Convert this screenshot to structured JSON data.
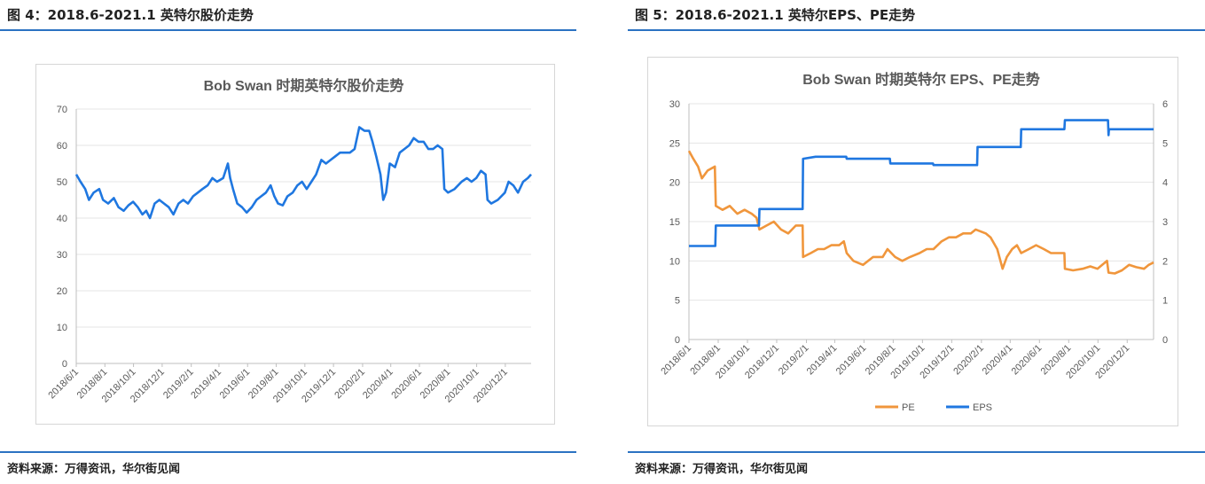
{
  "left_panel": {
    "figure_title": "图 4：2018.6-2021.1 英特尔股价走势",
    "source": "资料来源：万得资讯，华尔街见闻"
  },
  "right_panel": {
    "figure_title": "图 5：2018.6-2021.1 英特尔EPS、PE走势",
    "source": "资料来源：万得资讯，华尔街见闻"
  },
  "colors": {
    "rule": "#2b72c2",
    "price_line": "#1f77e0",
    "pe_line": "#f0963c",
    "eps_line": "#1f77e0",
    "grid": "#e4e4e4"
  },
  "chart_data": [
    {
      "type": "line",
      "title": "Bob Swan 时期英特尔股价走势",
      "xlabel": "",
      "ylabel": "",
      "ylim": [
        0,
        70
      ],
      "yticks": [
        0,
        10,
        20,
        30,
        40,
        50,
        60,
        70
      ],
      "x_range": [
        "2018-06-01",
        "2021-01-25"
      ],
      "x_ticks": [
        "2018/6/1",
        "2018/8/1",
        "2018/10/1",
        "2018/12/1",
        "2019/2/1",
        "2019/4/1",
        "2019/6/1",
        "2019/8/1",
        "2019/10/1",
        "2019/12/1",
        "2020/2/1",
        "2020/4/1",
        "2020/6/1",
        "2020/8/1",
        "2020/10/1",
        "2020/12/1"
      ],
      "grid": true,
      "legend": "none",
      "series": [
        {
          "points": [
            [
              "2018-06-01",
              52
            ],
            [
              "2018-06-10",
              50
            ],
            [
              "2018-06-20",
              48
            ],
            [
              "2018-06-28",
              45
            ],
            [
              "2018-07-08",
              47
            ],
            [
              "2018-07-20",
              48
            ],
            [
              "2018-07-28",
              45
            ],
            [
              "2018-08-08",
              44
            ],
            [
              "2018-08-20",
              45.5
            ],
            [
              "2018-08-30",
              43
            ],
            [
              "2018-09-10",
              42
            ],
            [
              "2018-09-20",
              43.5
            ],
            [
              "2018-09-30",
              44.5
            ],
            [
              "2018-10-10",
              43
            ],
            [
              "2018-10-20",
              41
            ],
            [
              "2018-10-28",
              42
            ],
            [
              "2018-11-05",
              40
            ],
            [
              "2018-11-15",
              44
            ],
            [
              "2018-11-25",
              45
            ],
            [
              "2018-12-05",
              44
            ],
            [
              "2018-12-15",
              43
            ],
            [
              "2018-12-25",
              41
            ],
            [
              "2019-01-05",
              44
            ],
            [
              "2019-01-15",
              45
            ],
            [
              "2019-01-25",
              44
            ],
            [
              "2019-02-05",
              46
            ],
            [
              "2019-02-15",
              47
            ],
            [
              "2019-02-25",
              48
            ],
            [
              "2019-03-08",
              49
            ],
            [
              "2019-03-18",
              51
            ],
            [
              "2019-03-28",
              50
            ],
            [
              "2019-04-10",
              51
            ],
            [
              "2019-04-20",
              55
            ],
            [
              "2019-04-25",
              51
            ],
            [
              "2019-05-01",
              48
            ],
            [
              "2019-05-10",
              44
            ],
            [
              "2019-05-20",
              43
            ],
            [
              "2019-05-30",
              41.5
            ],
            [
              "2019-06-10",
              43
            ],
            [
              "2019-06-20",
              45
            ],
            [
              "2019-06-30",
              46
            ],
            [
              "2019-07-10",
              47
            ],
            [
              "2019-07-20",
              49
            ],
            [
              "2019-07-28",
              46
            ],
            [
              "2019-08-05",
              44
            ],
            [
              "2019-08-15",
              43.5
            ],
            [
              "2019-08-25",
              46
            ],
            [
              "2019-09-05",
              47
            ],
            [
              "2019-09-15",
              49
            ],
            [
              "2019-09-25",
              50
            ],
            [
              "2019-10-05",
              48
            ],
            [
              "2019-10-15",
              50
            ],
            [
              "2019-10-25",
              52
            ],
            [
              "2019-11-05",
              56
            ],
            [
              "2019-11-15",
              55
            ],
            [
              "2019-11-25",
              56
            ],
            [
              "2019-12-05",
              57
            ],
            [
              "2019-12-15",
              58
            ],
            [
              "2019-12-25",
              58
            ],
            [
              "2020-01-05",
              58
            ],
            [
              "2020-01-15",
              59
            ],
            [
              "2020-01-25",
              65
            ],
            [
              "2020-02-05",
              64
            ],
            [
              "2020-02-15",
              64
            ],
            [
              "2020-02-22",
              61
            ],
            [
              "2020-03-01",
              57
            ],
            [
              "2020-03-10",
              52
            ],
            [
              "2020-03-16",
              45
            ],
            [
              "2020-03-22",
              47
            ],
            [
              "2020-03-30",
              55
            ],
            [
              "2020-04-10",
              54
            ],
            [
              "2020-04-20",
              58
            ],
            [
              "2020-04-30",
              59
            ],
            [
              "2020-05-10",
              60
            ],
            [
              "2020-05-20",
              62
            ],
            [
              "2020-05-30",
              61
            ],
            [
              "2020-06-10",
              61
            ],
            [
              "2020-06-20",
              59
            ],
            [
              "2020-06-30",
              59
            ],
            [
              "2020-07-10",
              60
            ],
            [
              "2020-07-20",
              59
            ],
            [
              "2020-07-24",
              48
            ],
            [
              "2020-08-01",
              47
            ],
            [
              "2020-08-15",
              48
            ],
            [
              "2020-08-30",
              50
            ],
            [
              "2020-09-10",
              51
            ],
            [
              "2020-09-20",
              50
            ],
            [
              "2020-09-30",
              51
            ],
            [
              "2020-10-10",
              53
            ],
            [
              "2020-10-20",
              52
            ],
            [
              "2020-10-24",
              45
            ],
            [
              "2020-11-01",
              44
            ],
            [
              "2020-11-15",
              45
            ],
            [
              "2020-11-30",
              47
            ],
            [
              "2020-12-08",
              50
            ],
            [
              "2020-12-18",
              49
            ],
            [
              "2020-12-28",
              47
            ],
            [
              "2021-01-08",
              50
            ],
            [
              "2021-01-18",
              51
            ],
            [
              "2021-01-25",
              52
            ]
          ]
        }
      ]
    },
    {
      "type": "line",
      "title": "Bob Swan 时期英特尔 EPS、PE走势",
      "xlabel": "",
      "ylabel": "",
      "ylim": [
        0,
        30
      ],
      "yticks": [
        0,
        5,
        10,
        15,
        20,
        25,
        30
      ],
      "y2lim": [
        0,
        6
      ],
      "y2ticks": [
        0,
        1,
        2,
        3,
        4,
        5,
        6
      ],
      "x_range": [
        "2018-06-01",
        "2021-01-25"
      ],
      "x_ticks": [
        "2018/6/1",
        "2018/8/1",
        "2018/10/1",
        "2018/12/1",
        "2019/2/1",
        "2019/4/1",
        "2019/6/1",
        "2019/8/1",
        "2019/10/1",
        "2019/12/1",
        "2020/2/1",
        "2020/4/1",
        "2020/6/1",
        "2020/8/1",
        "2020/10/1",
        "2020/12/1"
      ],
      "grid": true,
      "legend": "bottom",
      "series": [
        {
          "name": "PE",
          "axis": "left",
          "points": [
            [
              "2018-06-01",
              24
            ],
            [
              "2018-06-10",
              23
            ],
            [
              "2018-06-20",
              22
            ],
            [
              "2018-06-28",
              20.5
            ],
            [
              "2018-07-10",
              21.5
            ],
            [
              "2018-07-25",
              22
            ],
            [
              "2018-07-27",
              17
            ],
            [
              "2018-08-10",
              16.5
            ],
            [
              "2018-08-25",
              17
            ],
            [
              "2018-09-10",
              16
            ],
            [
              "2018-09-25",
              16.5
            ],
            [
              "2018-10-10",
              16
            ],
            [
              "2018-10-20",
              15.5
            ],
            [
              "2018-10-26",
              14
            ],
            [
              "2018-11-10",
              14.5
            ],
            [
              "2018-11-25",
              15
            ],
            [
              "2018-12-10",
              14
            ],
            [
              "2018-12-25",
              13.5
            ],
            [
              "2019-01-10",
              14.5
            ],
            [
              "2019-01-24",
              14.5
            ],
            [
              "2019-01-25",
              10.5
            ],
            [
              "2019-02-10",
              11
            ],
            [
              "2019-02-25",
              11.5
            ],
            [
              "2019-03-10",
              11.5
            ],
            [
              "2019-03-25",
              12
            ],
            [
              "2019-04-10",
              12
            ],
            [
              "2019-04-20",
              12.5
            ],
            [
              "2019-04-26",
              11
            ],
            [
              "2019-05-10",
              10
            ],
            [
              "2019-05-30",
              9.5
            ],
            [
              "2019-06-20",
              10.5
            ],
            [
              "2019-07-10",
              10.5
            ],
            [
              "2019-07-20",
              11.5
            ],
            [
              "2019-08-05",
              10.5
            ],
            [
              "2019-08-20",
              10
            ],
            [
              "2019-09-05",
              10.5
            ],
            [
              "2019-09-25",
              11
            ],
            [
              "2019-10-10",
              11.5
            ],
            [
              "2019-10-24",
              11.5
            ],
            [
              "2019-11-10",
              12.5
            ],
            [
              "2019-11-25",
              13
            ],
            [
              "2019-12-10",
              13
            ],
            [
              "2019-12-25",
              13.5
            ],
            [
              "2020-01-10",
              13.5
            ],
            [
              "2020-01-20",
              14
            ],
            [
              "2020-02-10",
              13.5
            ],
            [
              "2020-02-20",
              13
            ],
            [
              "2020-03-05",
              11.5
            ],
            [
              "2020-03-16",
              9
            ],
            [
              "2020-03-25",
              10.5
            ],
            [
              "2020-04-05",
              11.5
            ],
            [
              "2020-04-15",
              12
            ],
            [
              "2020-04-24",
              11
            ],
            [
              "2020-05-10",
              11.5
            ],
            [
              "2020-05-25",
              12
            ],
            [
              "2020-06-10",
              11.5
            ],
            [
              "2020-06-25",
              11
            ],
            [
              "2020-07-10",
              11
            ],
            [
              "2020-07-23",
              11
            ],
            [
              "2020-07-24",
              9
            ],
            [
              "2020-08-10",
              8.8
            ],
            [
              "2020-08-30",
              9
            ],
            [
              "2020-09-15",
              9.3
            ],
            [
              "2020-09-30",
              9
            ],
            [
              "2020-10-10",
              9.5
            ],
            [
              "2020-10-20",
              10
            ],
            [
              "2020-10-23",
              8.5
            ],
            [
              "2020-11-05",
              8.4
            ],
            [
              "2020-11-20",
              8.8
            ],
            [
              "2020-12-05",
              9.5
            ],
            [
              "2020-12-20",
              9.2
            ],
            [
              "2021-01-05",
              9
            ],
            [
              "2021-01-15",
              9.5
            ],
            [
              "2021-01-25",
              9.8
            ]
          ]
        },
        {
          "name": "EPS",
          "axis": "right",
          "points": [
            [
              "2018-06-01",
              2.38
            ],
            [
              "2018-07-26",
              2.38
            ],
            [
              "2018-07-27",
              2.9
            ],
            [
              "2018-10-25",
              2.9
            ],
            [
              "2018-10-26",
              3.32
            ],
            [
              "2019-01-24",
              3.32
            ],
            [
              "2019-01-25",
              4.6
            ],
            [
              "2019-02-20",
              4.65
            ],
            [
              "2019-04-25",
              4.65
            ],
            [
              "2019-04-26",
              4.6
            ],
            [
              "2019-07-25",
              4.6
            ],
            [
              "2019-07-26",
              4.48
            ],
            [
              "2019-10-23",
              4.48
            ],
            [
              "2019-10-24",
              4.44
            ],
            [
              "2020-01-23",
              4.44
            ],
            [
              "2020-01-24",
              4.9
            ],
            [
              "2020-04-23",
              4.9
            ],
            [
              "2020-04-24",
              5.35
            ],
            [
              "2020-07-23",
              5.35
            ],
            [
              "2020-07-24",
              5.58
            ],
            [
              "2020-10-22",
              5.58
            ],
            [
              "2020-10-23",
              5.2
            ],
            [
              "2020-10-24",
              5.35
            ],
            [
              "2021-01-25",
              5.35
            ]
          ]
        }
      ]
    }
  ]
}
